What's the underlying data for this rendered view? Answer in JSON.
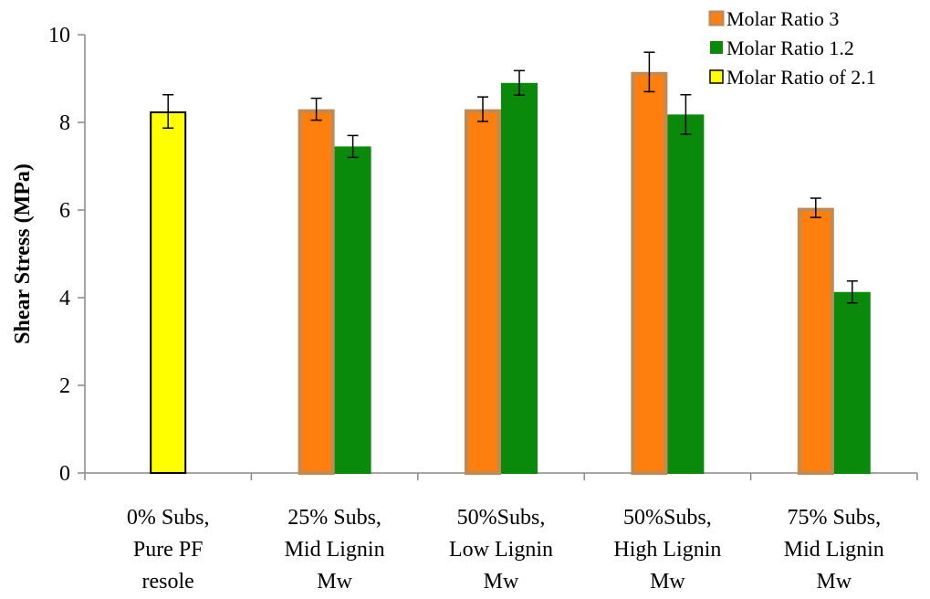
{
  "chart_data": {
    "type": "bar",
    "title": "",
    "ylabel": "Shear Stress (MPa)",
    "xlabel": "",
    "ylim": [
      0,
      10
    ],
    "yticks": [
      0,
      2,
      4,
      6,
      8,
      10
    ],
    "grid": false,
    "legend_position": "top-right",
    "categories": [
      [
        "0% Subs,",
        "Pure PF",
        "resole"
      ],
      [
        "25% Subs,",
        "Mid Lignin",
        "Mw"
      ],
      [
        "50%Subs,",
        "Low Lignin",
        "Mw"
      ],
      [
        "50%Subs,",
        "High Lignin",
        "Mw"
      ],
      [
        "75% Subs,",
        "Mid Lignin",
        "Mw"
      ]
    ],
    "series": [
      {
        "name": "Molar Ratio 3",
        "color": "#FF7F0E",
        "border": "#C08A55",
        "values": [
          null,
          8.3,
          8.3,
          9.15,
          6.05
        ],
        "errors": [
          null,
          0.25,
          0.28,
          0.45,
          0.22
        ]
      },
      {
        "name": "Molar Ratio 1.2",
        "color": "#0A8A0A",
        "border": "#0A8A0A",
        "values": [
          null,
          7.45,
          8.9,
          8.18,
          4.13
        ],
        "errors": [
          null,
          0.25,
          0.28,
          0.45,
          0.25
        ]
      },
      {
        "name": "Molar Ratio of 2.1",
        "color": "#FFFF00",
        "border": "#000000",
        "values": [
          8.25,
          null,
          null,
          null,
          null
        ],
        "errors": [
          0.38,
          null,
          null,
          null,
          null
        ]
      }
    ]
  }
}
